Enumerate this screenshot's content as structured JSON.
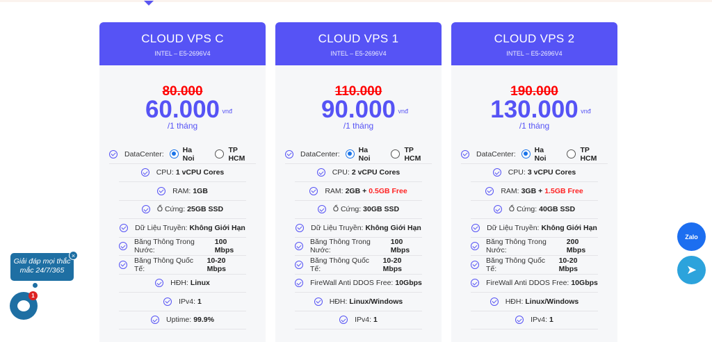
{
  "currency": "vnđ",
  "plans": [
    {
      "title": "CLOUD VPS C",
      "cpu_model": "INTEL – E5-2696V4",
      "old_price": "80.000",
      "price": "60.000",
      "period": "/1 tháng",
      "datacenter": {
        "label": "DataCenter:",
        "options": [
          "Ha Noi",
          "TP HCM"
        ],
        "selected": "Ha Noi"
      },
      "features": [
        {
          "label": "CPU:",
          "value": "1 vCPU Cores",
          "extra": ""
        },
        {
          "label": "RAM:",
          "value": "1GB",
          "extra": ""
        },
        {
          "label": "Ổ Cứng:",
          "value": "25GB SSD",
          "extra": ""
        },
        {
          "label": "Dữ Liệu Truyền:",
          "value": "Không Giới Hạn",
          "extra": ""
        },
        {
          "label": "Băng Thông Trong Nước:",
          "value": "100 Mbps",
          "extra": ""
        },
        {
          "label": "Băng Thông Quốc Tế:",
          "value": "10-20 Mbps",
          "extra": ""
        },
        {
          "label": "HĐH:",
          "value": "Linux",
          "extra": ""
        },
        {
          "label": "IPv4:",
          "value": "1",
          "extra": ""
        },
        {
          "label": "Uptime:",
          "value": "99.9%",
          "extra": ""
        }
      ]
    },
    {
      "title": "CLOUD VPS 1",
      "cpu_model": "INTEL – E5-2696V4",
      "old_price": "110.000",
      "price": "90.000",
      "period": "/1 tháng",
      "datacenter": {
        "label": "DataCenter:",
        "options": [
          "Ha Noi",
          "TP HCM"
        ],
        "selected": "Ha Noi"
      },
      "features": [
        {
          "label": "CPU:",
          "value": "2 vCPU Cores",
          "extra": ""
        },
        {
          "label": "RAM:",
          "value": "2GB +",
          "extra": "0.5GB Free"
        },
        {
          "label": "Ổ Cứng:",
          "value": "30GB SSD",
          "extra": ""
        },
        {
          "label": "Dữ Liệu Truyền:",
          "value": "Không Giới Hạn",
          "extra": ""
        },
        {
          "label": "Băng Thông Trong Nước:",
          "value": "100 Mbps",
          "extra": ""
        },
        {
          "label": "Băng Thông Quốc Tế:",
          "value": "10-20 Mbps",
          "extra": ""
        },
        {
          "label": "FireWall Anti DDOS Free:",
          "value": "10Gbps",
          "extra": ""
        },
        {
          "label": "HĐH:",
          "value": "Linux/Windows",
          "extra": ""
        },
        {
          "label": "IPv4:",
          "value": "1",
          "extra": ""
        }
      ]
    },
    {
      "title": "CLOUD VPS 2",
      "cpu_model": "INTEL – E5-2696V4",
      "old_price": "190.000",
      "price": "130.000",
      "period": "/1 tháng",
      "datacenter": {
        "label": "DataCenter:",
        "options": [
          "Ha Noi",
          "TP HCM"
        ],
        "selected": "Ha Noi"
      },
      "features": [
        {
          "label": "CPU:",
          "value": "3 vCPU Cores",
          "extra": ""
        },
        {
          "label": "RAM:",
          "value": "3GB +",
          "extra": "1.5GB Free"
        },
        {
          "label": "Ổ Cứng:",
          "value": "40GB SSD",
          "extra": ""
        },
        {
          "label": "Dữ Liệu Truyền:",
          "value": "Không Giới Hạn",
          "extra": ""
        },
        {
          "label": "Băng Thông Trong Nước:",
          "value": "200 Mbps",
          "extra": ""
        },
        {
          "label": "Băng Thông Quốc Tế:",
          "value": "10-20 Mbps",
          "extra": ""
        },
        {
          "label": "FireWall Anti DDOS Free:",
          "value": "10Gbps",
          "extra": ""
        },
        {
          "label": "HĐH:",
          "value": "Linux/Windows",
          "extra": ""
        },
        {
          "label": "IPv4:",
          "value": "1",
          "extra": ""
        }
      ]
    }
  ],
  "chat": {
    "bubble_text": "Giải đáp mọi thắc mắc 24/7/365",
    "close": "×",
    "badge": "1"
  },
  "social": {
    "zalo": "Zalo",
    "telegram": "➤"
  },
  "colors": {
    "brand": "#5653f5",
    "old_price": "#ff0000",
    "chat": "#1e6fa3"
  }
}
